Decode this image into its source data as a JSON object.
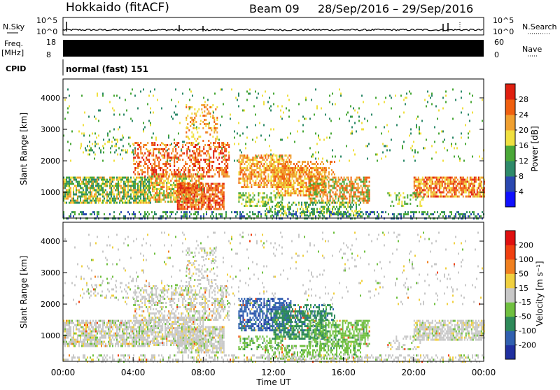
{
  "header": {
    "station": "Hokkaido (fitACF)",
    "beam": "Beam 09",
    "date_range": "28/Sep/2016 – 29/Sep/2016"
  },
  "strips": {
    "nsky_label": "N.Sky",
    "nsky_ticks": [
      "10^5",
      "10^0"
    ],
    "nsearch_label": "N.Search",
    "nsearch_ticks": [
      "10^5",
      "10^0"
    ],
    "freq_label_1": "Freq.",
    "freq_label_2": "[MHz]",
    "freq_ticks": [
      "18",
      "8"
    ],
    "nave_label": "Nave",
    "nave_ticks": [
      "60",
      "0"
    ],
    "cpid_label": "CPID",
    "cpid_value": "normal (fast) 151"
  },
  "chart_data": [
    {
      "type": "heatmap",
      "name": "power",
      "ylabel": "Slant Range [km]",
      "ylim": [
        180,
        4600
      ],
      "yticks": [
        "1000",
        "2000",
        "3000",
        "4000"
      ],
      "colorbar": {
        "label": "Power [dB]",
        "ticks": [
          "4",
          "8",
          "12",
          "16",
          "20",
          "24",
          "28"
        ],
        "colors": [
          "#1010ff",
          "#2a48b0",
          "#2e8a6a",
          "#4aa838",
          "#f0e040",
          "#f0a030",
          "#f06010",
          "#e02010"
        ]
      }
    },
    {
      "type": "heatmap",
      "name": "velocity",
      "ylabel": "Slant Range [km]",
      "xlabel": "Time UT",
      "ylim": [
        180,
        4600
      ],
      "yticks": [
        "1000",
        "2000",
        "3000",
        "4000"
      ],
      "xticks": [
        "00:00",
        "04:00",
        "08:00",
        "12:00",
        "16:00",
        "20:00",
        "00:00"
      ],
      "colorbar": {
        "label": "Velocity [m s⁻¹]",
        "ticks": [
          "200",
          "100",
          "50",
          "15",
          "-15",
          "-50",
          "-100",
          "-200"
        ],
        "colors": [
          "#2030a0",
          "#3060b0",
          "#2e8a5a",
          "#70c040",
          "#c8c8c8",
          "#f0d040",
          "#f08020",
          "#f04010",
          "#e01010"
        ]
      }
    }
  ]
}
